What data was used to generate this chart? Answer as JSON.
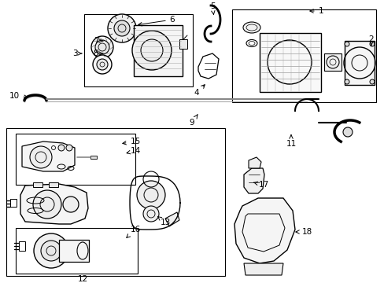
{
  "bg": "#ffffff",
  "lc": "#000000",
  "fig_w": 4.89,
  "fig_h": 3.6,
  "dpi": 100,
  "labels": [
    [
      "1",
      390,
      18,
      405,
      12
    ],
    [
      "2",
      472,
      60,
      472,
      55
    ],
    [
      "3",
      105,
      68,
      96,
      68
    ],
    [
      "4",
      263,
      110,
      256,
      118
    ],
    [
      "5",
      270,
      12,
      270,
      6
    ],
    [
      "6",
      210,
      28,
      217,
      25
    ],
    [
      "7",
      133,
      52,
      126,
      52
    ],
    [
      "8",
      133,
      68,
      126,
      68
    ],
    [
      "9",
      253,
      148,
      247,
      156
    ],
    [
      "10",
      42,
      122,
      20,
      122
    ],
    [
      "11",
      372,
      175,
      372,
      183
    ],
    [
      "12",
      105,
      355,
      105,
      355
    ],
    [
      "13",
      208,
      272,
      213,
      280
    ],
    [
      "14",
      168,
      195,
      175,
      190
    ],
    [
      "15",
      168,
      185,
      175,
      180
    ],
    [
      "16",
      168,
      295,
      175,
      290
    ],
    [
      "17",
      328,
      238,
      335,
      233
    ],
    [
      "18",
      388,
      298,
      395,
      293
    ]
  ]
}
